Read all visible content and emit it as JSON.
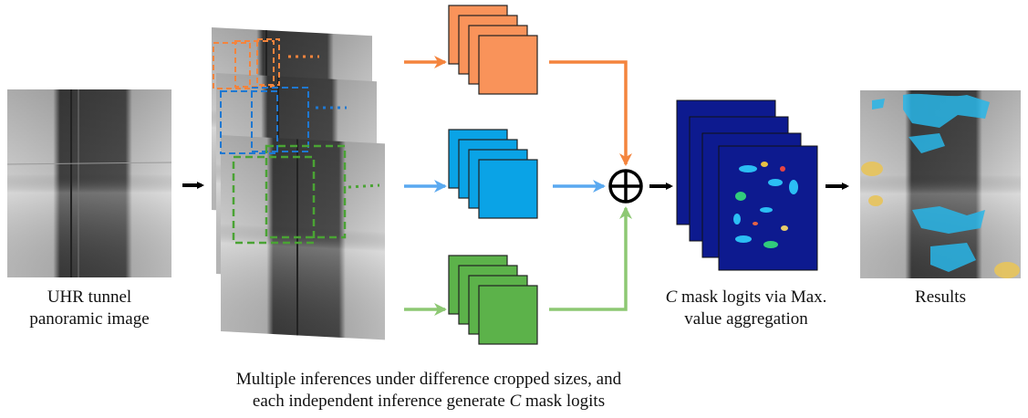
{
  "captions": {
    "input_line1": "UHR tunnel",
    "input_line2": "panoramic image",
    "bottom_line1": "Multiple inferences under difference cropped sizes, and",
    "bottom_line2_pre": "each independent inference generate ",
    "bottom_line2_var": "C",
    "bottom_line2_post": " mask logits",
    "agg_line1_var": "C",
    "agg_line1_post": " mask logits via Max.",
    "agg_line2": "value aggregation",
    "results": "Results"
  },
  "colors": {
    "orange": "#f4843d",
    "orange_fill": "#f9935a",
    "blue": "#5aa9f0",
    "blue_fill": "#0aa3e6",
    "green": "#8dc873",
    "green_fill": "#5cb24a",
    "arrow": "#000000",
    "heatmap": "#0d1a8f"
  },
  "icons": {
    "sum": "circled-plus-icon"
  }
}
